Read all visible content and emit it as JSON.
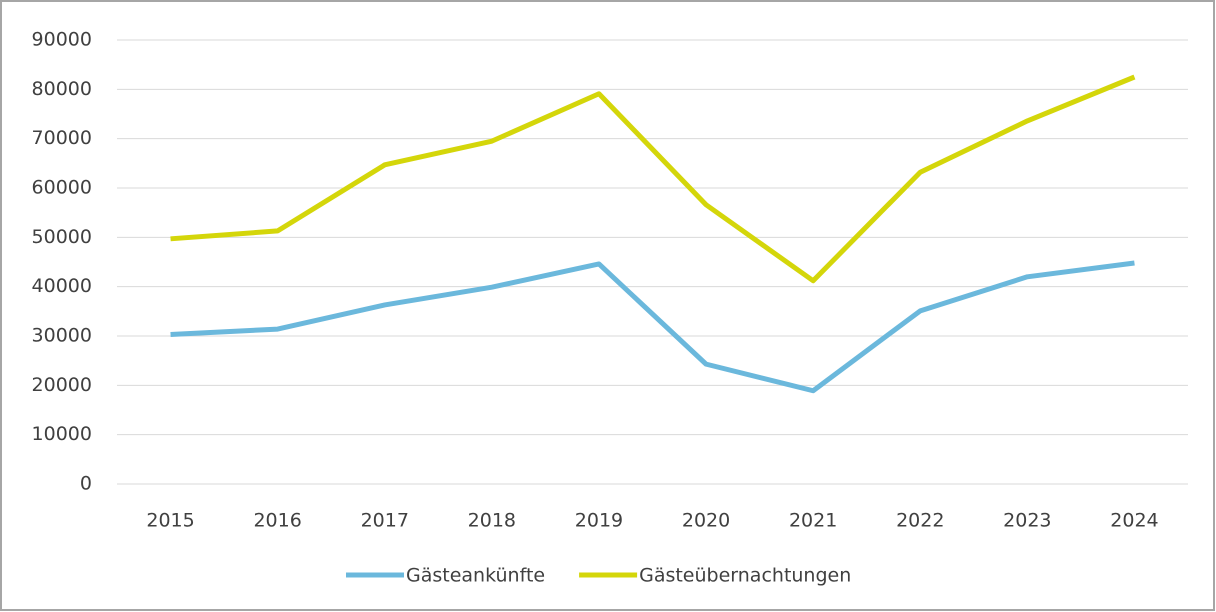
{
  "chart_data": {
    "type": "line",
    "categories": [
      "2015",
      "2016",
      "2017",
      "2018",
      "2019",
      "2020",
      "2021",
      "2022",
      "2023",
      "2024"
    ],
    "series": [
      {
        "name": "Gästeankünfte",
        "color": "#6bb8dc",
        "values": [
          30300,
          31400,
          36300,
          39900,
          44600,
          24300,
          18900,
          35100,
          42000,
          44800
        ]
      },
      {
        "name": "Gästeübernachtungen",
        "color": "#d4d60a",
        "values": [
          49700,
          51300,
          64700,
          69500,
          79100,
          56600,
          41200,
          63200,
          73600,
          82500
        ]
      }
    ],
    "ylim": [
      0,
      90000
    ],
    "yticks": [
      0,
      10000,
      20000,
      30000,
      40000,
      50000,
      60000,
      70000,
      80000,
      90000
    ],
    "grid": true,
    "legend": "bottom"
  }
}
